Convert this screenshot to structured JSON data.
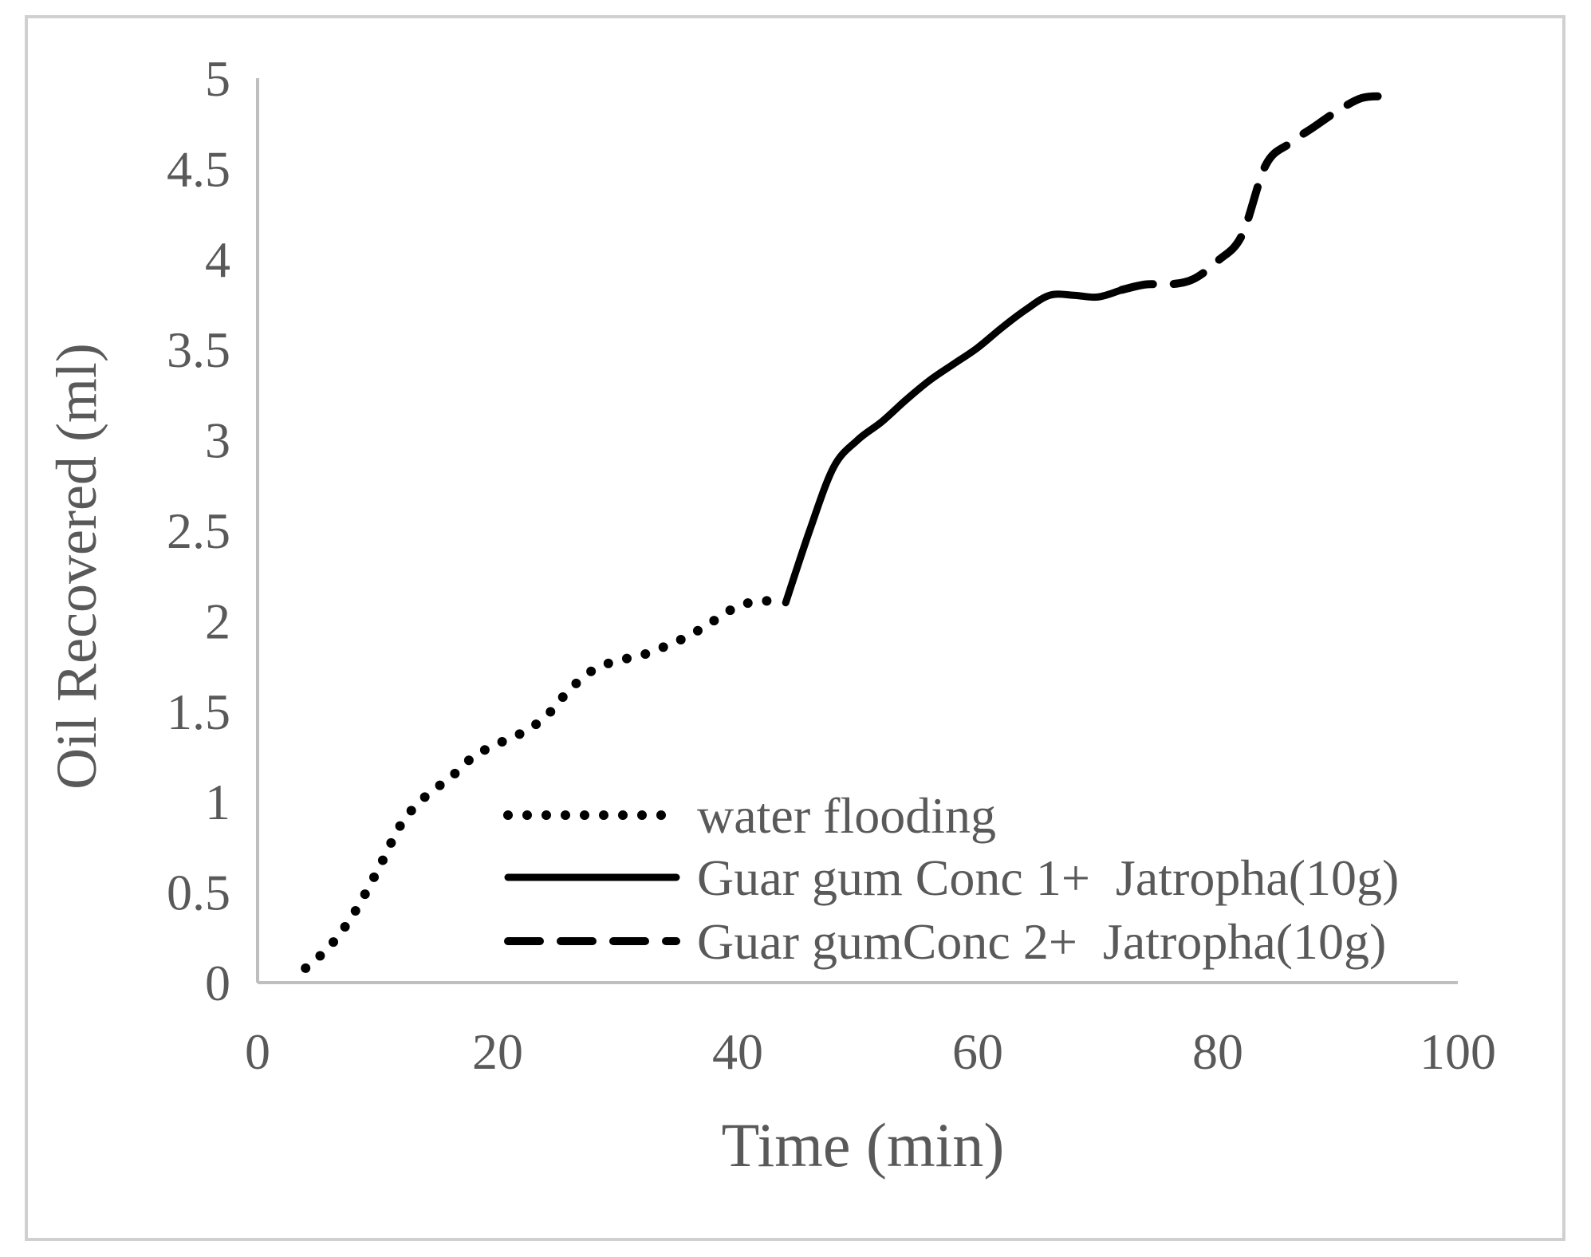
{
  "chart_data": {
    "type": "line",
    "title": "",
    "xlabel": "Time (min)",
    "ylabel": "Oil Recovered (ml)",
    "xlim": [
      0,
      100
    ],
    "ylim": [
      0,
      5
    ],
    "xticks": [
      0,
      20,
      40,
      60,
      80,
      100
    ],
    "yticks": [
      0,
      0.5,
      1,
      1.5,
      2,
      2.5,
      3,
      3.5,
      4,
      4.5,
      5
    ],
    "xtick_labels": [
      "0",
      "20",
      "40",
      "60",
      "80",
      "100"
    ],
    "ytick_labels": [
      "0",
      "0.5",
      "1",
      "1.5",
      "2",
      "2.5",
      "3",
      "3.5",
      "4",
      "4.5",
      "5"
    ],
    "grid": false,
    "legend_position": "bottom-center inside plot",
    "colors": {
      "axis": "#bfbfbf",
      "text": "#595959",
      "series": "#000000",
      "frame": "#d0d0d0"
    },
    "series": [
      {
        "name": "water flooding",
        "style": "dotted",
        "x": [
          4,
          6,
          8,
          10,
          12,
          14,
          16,
          18,
          20,
          22,
          24,
          26,
          28,
          30,
          32,
          34,
          36,
          38,
          40,
          42,
          44
        ],
        "y": [
          0.08,
          0.2,
          0.38,
          0.62,
          0.88,
          1.03,
          1.13,
          1.25,
          1.32,
          1.38,
          1.47,
          1.62,
          1.73,
          1.78,
          1.81,
          1.86,
          1.92,
          2.0,
          2.08,
          2.11,
          2.1
        ]
      },
      {
        "name": "Guar gum Conc 1+  Jatropha(10g)",
        "style": "solid",
        "x": [
          44,
          46,
          48,
          50,
          52,
          54,
          56,
          58,
          60,
          62,
          64,
          66,
          68,
          70,
          72
        ],
        "y": [
          2.1,
          2.5,
          2.85,
          3.0,
          3.1,
          3.22,
          3.33,
          3.42,
          3.51,
          3.62,
          3.72,
          3.8,
          3.8,
          3.79,
          3.83
        ]
      },
      {
        "name": "Guar gumConc 2+  Jatropha(10g)",
        "style": "dashed",
        "x": [
          72,
          74,
          76,
          78,
          80,
          82,
          84,
          86,
          88,
          90,
          92,
          94
        ],
        "y": [
          3.83,
          3.86,
          3.86,
          3.89,
          3.99,
          4.13,
          4.52,
          4.64,
          4.73,
          4.82,
          4.89,
          4.9
        ]
      }
    ]
  }
}
